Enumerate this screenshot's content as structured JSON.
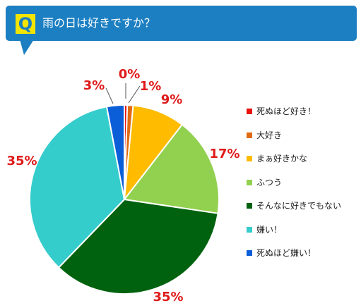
{
  "question": {
    "badge": "Q",
    "text": "雨の日は好きですか？"
  },
  "chart_data": {
    "type": "pie",
    "title": "雨の日は好きですか？",
    "slices": [
      {
        "label": "死ぬほど好き！",
        "value": 0.5,
        "display": "0%",
        "color": "#e8130f"
      },
      {
        "label": "大好き",
        "value": 1,
        "display": "1%",
        "color": "#e06a12"
      },
      {
        "label": "まぁ好きかな",
        "value": 9,
        "display": "9%",
        "color": "#ffbb00"
      },
      {
        "label": "ふつう",
        "value": 17,
        "display": "17%",
        "color": "#92d050"
      },
      {
        "label": "そんなに好きでもない",
        "value": 35,
        "display": "35%",
        "color": "#00620e"
      },
      {
        "label": "嫌い！",
        "value": 35,
        "display": "35%",
        "color": "#35cccc"
      },
      {
        "label": "死ぬほど嫌い！",
        "value": 3,
        "display": "3%",
        "color": "#0b5ed7"
      }
    ],
    "legend_position": "right",
    "start_angle": "top, clockwise"
  }
}
